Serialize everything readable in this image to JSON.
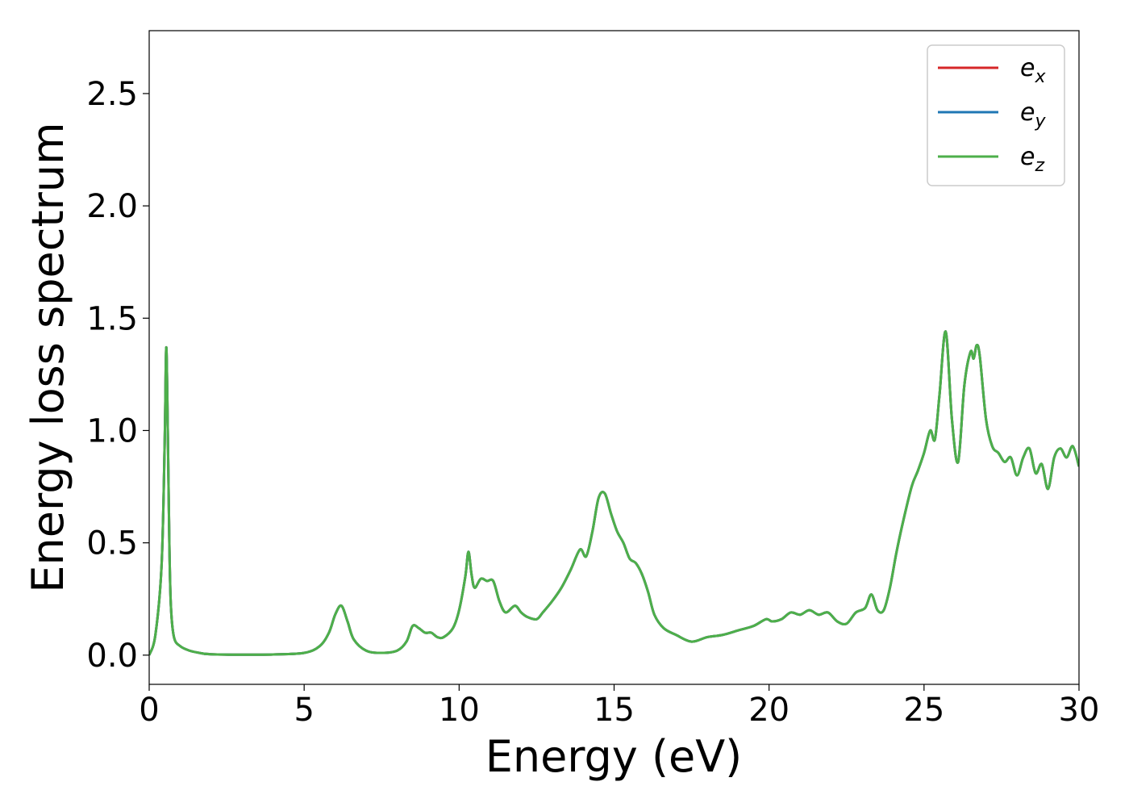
{
  "chart_data": {
    "type": "line",
    "xlabel": "Energy (eV)",
    "ylabel": "Energy loss spectrum",
    "xlim": [
      0,
      30
    ],
    "ylim": [
      -0.13,
      2.78
    ],
    "x_ticks": [
      0,
      5,
      10,
      15,
      20,
      25,
      30
    ],
    "x_tick_labels": [
      "0",
      "5",
      "10",
      "15",
      "20",
      "25",
      "30"
    ],
    "y_ticks": [
      0.0,
      0.5,
      1.0,
      1.5,
      2.0,
      2.5
    ],
    "y_tick_labels": [
      "0.0",
      "0.5",
      "1.0",
      "1.5",
      "2.0",
      "2.5"
    ],
    "grid": false,
    "legend_position": "top-right",
    "series": [
      {
        "name": "e_x",
        "label_main": "e",
        "label_sub": "x",
        "color": "#d62728"
      },
      {
        "name": "e_y",
        "label_main": "e",
        "label_sub": "y",
        "color": "#1f77b4"
      },
      {
        "name": "e_z",
        "label_main": "e",
        "label_sub": "z",
        "color": "#4daf4a"
      }
    ],
    "x": [
      0,
      0.2,
      0.4,
      0.5,
      0.55,
      0.6,
      0.65,
      0.7,
      0.8,
      1.0,
      1.3,
      1.7,
      2.0,
      3.0,
      4.0,
      5.0,
      5.5,
      5.8,
      6.0,
      6.2,
      6.4,
      6.6,
      7.0,
      7.5,
      8.0,
      8.3,
      8.5,
      8.7,
      8.9,
      9.1,
      9.3,
      9.5,
      9.8,
      10.0,
      10.2,
      10.3,
      10.4,
      10.5,
      10.7,
      10.9,
      11.1,
      11.3,
      11.5,
      11.8,
      12.0,
      12.2,
      12.5,
      12.7,
      13.0,
      13.3,
      13.6,
      13.9,
      14.1,
      14.3,
      14.5,
      14.7,
      14.9,
      15.1,
      15.3,
      15.5,
      15.7,
      15.9,
      16.1,
      16.3,
      16.6,
      17.0,
      17.5,
      18.0,
      18.5,
      19.0,
      19.5,
      19.9,
      20.1,
      20.4,
      20.7,
      21.0,
      21.3,
      21.6,
      21.9,
      22.2,
      22.5,
      22.8,
      23.1,
      23.3,
      23.5,
      23.7,
      23.9,
      24.1,
      24.3,
      24.6,
      24.8,
      25.0,
      25.2,
      25.35,
      25.5,
      25.7,
      25.9,
      26.1,
      26.3,
      26.5,
      26.6,
      26.7,
      26.8,
      27.0,
      27.2,
      27.4,
      27.6,
      27.8,
      28.0,
      28.2,
      28.4,
      28.6,
      28.8,
      29.0,
      29.2,
      29.4,
      29.6,
      29.8,
      30.0
    ],
    "y": [
      0.0,
      0.09,
      0.4,
      0.95,
      1.37,
      1.0,
      0.5,
      0.22,
      0.08,
      0.04,
      0.02,
      0.008,
      0.004,
      0.002,
      0.003,
      0.01,
      0.04,
      0.1,
      0.18,
      0.22,
      0.15,
      0.07,
      0.02,
      0.01,
      0.02,
      0.06,
      0.13,
      0.12,
      0.1,
      0.1,
      0.08,
      0.08,
      0.12,
      0.2,
      0.35,
      0.46,
      0.36,
      0.3,
      0.34,
      0.33,
      0.33,
      0.24,
      0.19,
      0.22,
      0.19,
      0.17,
      0.16,
      0.19,
      0.24,
      0.3,
      0.38,
      0.47,
      0.44,
      0.55,
      0.7,
      0.72,
      0.63,
      0.55,
      0.5,
      0.43,
      0.41,
      0.36,
      0.28,
      0.18,
      0.12,
      0.09,
      0.06,
      0.08,
      0.09,
      0.11,
      0.13,
      0.16,
      0.15,
      0.16,
      0.19,
      0.18,
      0.2,
      0.18,
      0.19,
      0.15,
      0.14,
      0.19,
      0.21,
      0.27,
      0.2,
      0.2,
      0.3,
      0.45,
      0.58,
      0.75,
      0.82,
      0.9,
      1.0,
      0.96,
      1.16,
      1.44,
      1.05,
      0.86,
      1.2,
      1.35,
      1.32,
      1.38,
      1.33,
      1.05,
      0.93,
      0.9,
      0.86,
      0.88,
      0.8,
      0.88,
      0.92,
      0.81,
      0.85,
      0.74,
      0.88,
      0.92,
      0.88,
      0.93,
      0.84
    ]
  }
}
